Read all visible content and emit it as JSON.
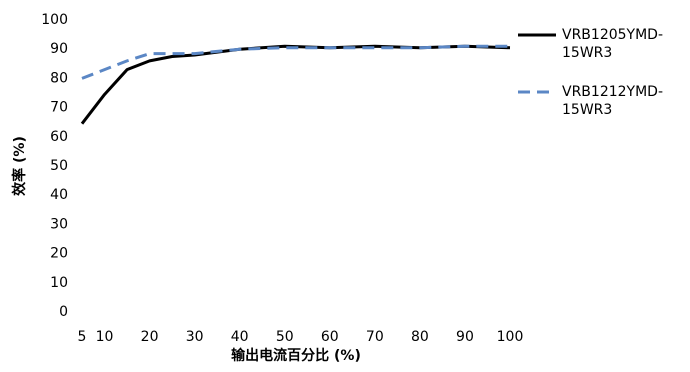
{
  "chart_data": {
    "type": "line",
    "x_label": "输出电流百分比 (%)",
    "y_label": "效率 (%)",
    "x": [
      5,
      10,
      15,
      20,
      25,
      30,
      40,
      50,
      60,
      70,
      80,
      90,
      100
    ],
    "series": [
      {
        "name": "VRB1205YMD-15WR3",
        "color": "#000000",
        "dash": false,
        "values": [
          64.5,
          74.5,
          83,
          86,
          87.5,
          88,
          90,
          91,
          90.5,
          91,
          90.5,
          91,
          90.5
        ]
      },
      {
        "name": "VRB1212YMD-15WR3",
        "color": "#5b87c5",
        "dash": true,
        "values": [
          80,
          83,
          86,
          88.5,
          88.5,
          88.5,
          90,
          90.5,
          90.5,
          90.5,
          90.5,
          91,
          91
        ]
      }
    ],
    "xlim": [
      5,
      100
    ],
    "xticks": [
      5,
      10,
      20,
      30,
      40,
      50,
      60,
      70,
      80,
      90,
      100
    ],
    "ylim": [
      0,
      100
    ],
    "yticks": [
      0,
      10,
      20,
      30,
      40,
      50,
      60,
      70,
      80,
      90,
      100
    ],
    "grid": false,
    "legend": "right"
  }
}
